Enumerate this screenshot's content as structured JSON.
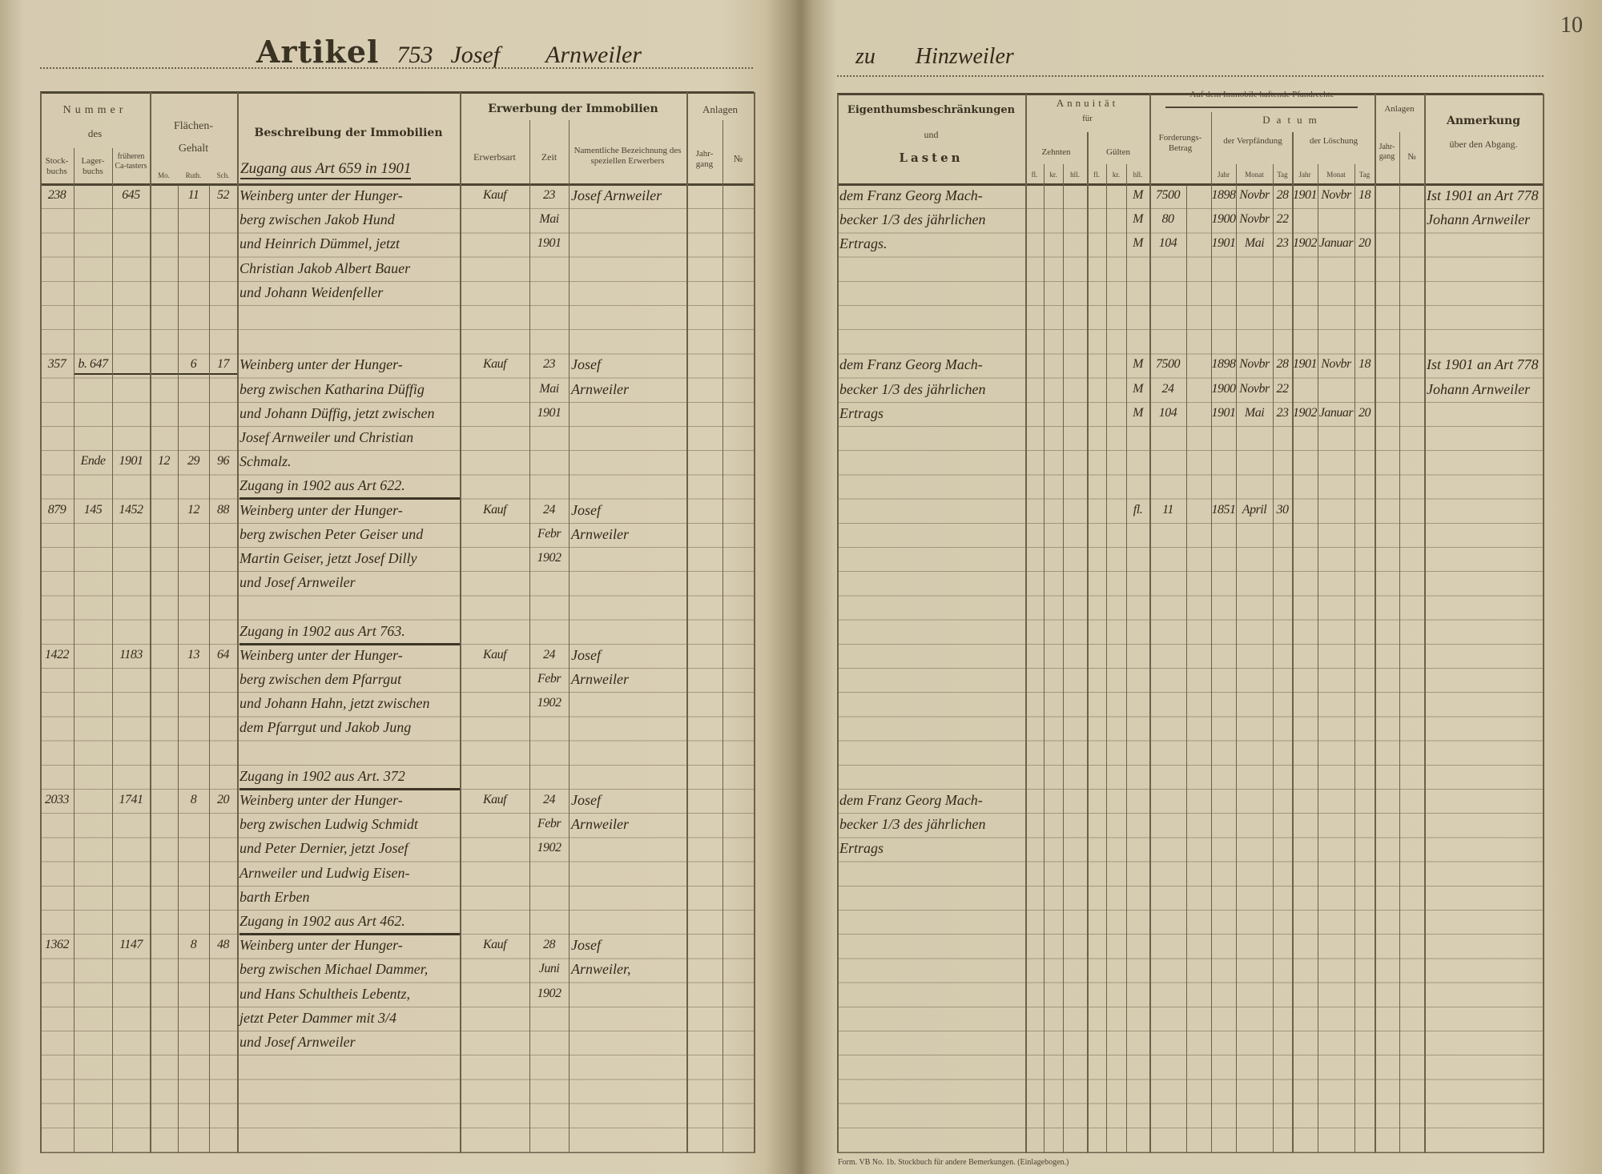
{
  "left_page": {
    "title_printed": "Artikel",
    "title_number": "753",
    "title_name": "Josef Arnweiler",
    "header": {
      "nummer": "Nummer",
      "des": "des",
      "stock": "Stock-buchs",
      "lager": "Lager-buchs",
      "frueh": "früheren Ca-tasters",
      "flaechen": "Flächen-",
      "gehalt": "Gehalt",
      "ma": "Mo.",
      "ruth": "Ruth.",
      "sch": "Sch.",
      "beschreibung": "Beschreibung der Immobilien",
      "erwerbung": "Erwerbung der Immobilien",
      "erwerbsart": "Erwerbsart",
      "zeit": "Zeit",
      "namentliche": "Namentliche Bezeichnung des speziellen Erwerbers",
      "anlagen": "Anlagen",
      "jahrgang": "Jahr-gang",
      "nr": "№",
      "first_zugang": "Zugang aus Art 659 in 1901"
    },
    "rows": [
      {
        "stock": "238",
        "frueh": "645",
        "ruth": "11",
        "sch": "52",
        "desc": "Weinberg unter der Hunger-",
        "art": "Kauf",
        "zeit": "23",
        "name": "Josef Arnweiler"
      },
      {
        "desc": "berg zwischen Jakob Hund",
        "zeit": "Mai"
      },
      {
        "desc": "und Heinrich Dümmel, jetzt",
        "zeit": "1901"
      },
      {
        "desc": "Christian Jakob Albert Bauer"
      },
      {
        "desc": "und Johann Weidenfeller"
      },
      {},
      {},
      {
        "stock": "357",
        "lager": "b. 647",
        "ruth": "6",
        "sch": "17",
        "desc": "Weinberg unter der Hunger-",
        "art": "Kauf",
        "zeit": "23",
        "name": "Josef"
      },
      {
        "desc": "berg zwischen Katharina Düffig",
        "zeit": "Mai",
        "name": "Arnweiler"
      },
      {
        "desc": "und Johann Düffig, jetzt zwischen",
        "zeit": "1901"
      },
      {
        "desc": "Josef Arnweiler und Christian"
      },
      {
        "lager": "Ende",
        "frueh": "1901",
        "ma": "12",
        "ruth": "29",
        "sch": "96",
        "desc": "Schmalz."
      },
      {
        "desc": "Zugang in 1902 aus Art 622.",
        "type": "zugang"
      },
      {
        "stock": "879",
        "lager": "145",
        "frueh": "1452",
        "ruth": "12",
        "sch": "88",
        "desc": "Weinberg unter der Hunger-",
        "art": "Kauf",
        "zeit": "24",
        "name": "Josef"
      },
      {
        "desc": "berg zwischen Peter Geiser und",
        "zeit": "Febr",
        "name": "Arnweiler"
      },
      {
        "desc": "Martin Geiser, jetzt Josef Dilly",
        "zeit": "1902"
      },
      {
        "desc": "und Josef Arnweiler"
      },
      {},
      {
        "desc": "Zugang in 1902 aus Art 763.",
        "type": "zugang"
      },
      {
        "stock": "1422",
        "frueh": "1183",
        "ruth": "13",
        "sch": "64",
        "desc": "Weinberg unter der Hunger-",
        "art": "Kauf",
        "zeit": "24",
        "name": "Josef"
      },
      {
        "desc": "berg zwischen dem Pfarrgut",
        "zeit": "Febr",
        "name": "Arnweiler"
      },
      {
        "desc": "und Johann Hahn, jetzt zwischen",
        "zeit": "1902"
      },
      {
        "desc": "dem Pfarrgut und Jakob Jung"
      },
      {},
      {
        "desc": "Zugang in 1902 aus Art. 372",
        "type": "zugang"
      },
      {
        "stock": "2033",
        "frueh": "1741",
        "ruth": "8",
        "sch": "20",
        "desc": "Weinberg unter der Hunger-",
        "art": "Kauf",
        "zeit": "24",
        "name": "Josef"
      },
      {
        "desc": "berg zwischen Ludwig Schmidt",
        "zeit": "Febr",
        "name": "Arnweiler"
      },
      {
        "desc": "und Peter Dernier, jetzt Josef",
        "zeit": "1902"
      },
      {
        "desc": "Arnweiler und Ludwig Eisen-"
      },
      {
        "desc": "barth Erben"
      },
      {
        "desc": "Zugang in 1902 aus Art 462.",
        "type": "zugang"
      },
      {
        "stock": "1362",
        "frueh": "1147",
        "ruth": "8",
        "sch": "48",
        "desc": "Weinberg unter der Hunger-",
        "art": "Kauf",
        "zeit": "28",
        "name": "Josef"
      },
      {
        "desc": "berg zwischen Michael Dammer,",
        "zeit": "Juni",
        "name": "Arnweiler,"
      },
      {
        "desc": "und Hans Schultheis Lebentz,",
        "zeit": "1902"
      },
      {
        "desc": "jetzt Peter Dammer mit 3/4"
      },
      {
        "desc": "und Josef Arnweiler"
      },
      {},
      {},
      {},
      {}
    ]
  },
  "right_page": {
    "title_prefix": "zu",
    "title_place": "Hinzweiler",
    "page_number": "10",
    "header": {
      "eigenthum": "Eigenthumsbeschränkungen",
      "und": "und",
      "lasten": "Lasten",
      "annuitaet": "Annuität",
      "fuer": "für",
      "zehnten": "Zehnten",
      "guelten": "Gülten",
      "fl": "fl.",
      "kr": "kr.",
      "hl": "hll.",
      "pfandrechte": "Auf dem Immobile haftende Pfandrechte",
      "forderung": "Forderungs-Betrag",
      "datum": "Datum",
      "verpfaendung": "der Verpfändung",
      "loeschung": "der Löschung",
      "jahr": "Jahr",
      "monat": "Monat",
      "tag": "Tag",
      "anlagen": "Anlagen",
      "jahrgang": "Jahr-gang",
      "nr": "№",
      "anmerkung": "Anmerkung",
      "abgang": "über den Abgang."
    },
    "rows": [
      {
        "eig": "dem Franz Georg Mach-",
        "cur": "M",
        "betrag": "7500",
        "vj": "1898",
        "vm": "Novbr",
        "vt": "28",
        "lj": "1901",
        "lm": "Novbr",
        "lt": "18",
        "anm": "Ist 1901 an Art 778"
      },
      {
        "eig": "becker 1/3 des jährlichen",
        "cur": "M",
        "betrag": "80",
        "vj": "1900",
        "vm": "Novbr",
        "vt": "22",
        "anm": "Johann Arnweiler"
      },
      {
        "eig": "Ertrags.",
        "cur": "M",
        "betrag": "104",
        "vj": "1901",
        "vm": "Mai",
        "vt": "23",
        "lj": "1902",
        "lm": "Januar",
        "lt": "20"
      },
      {},
      {},
      {},
      {},
      {
        "eig": "dem Franz Georg Mach-",
        "cur": "M",
        "betrag": "7500",
        "vj": "1898",
        "vm": "Novbr",
        "vt": "28",
        "lj": "1901",
        "lm": "Novbr",
        "lt": "18",
        "anm": "Ist 1901 an Art 778"
      },
      {
        "eig": "becker 1/3 des jährlichen",
        "cur": "M",
        "betrag": "24",
        "vj": "1900",
        "vm": "Novbr",
        "vt": "22",
        "anm": "Johann Arnweiler"
      },
      {
        "eig": "Ertrags",
        "cur": "M",
        "betrag": "104",
        "vj": "1901",
        "vm": "Mai",
        "vt": "23",
        "lj": "1902",
        "lm": "Januar",
        "lt": "20"
      },
      {},
      {},
      {},
      {
        "cur": "fl.",
        "betrag": "11",
        "vj": "1851",
        "vm": "April",
        "vt": "30"
      },
      {},
      {},
      {},
      {},
      {},
      {},
      {},
      {},
      {},
      {},
      {},
      {
        "eig": "dem Franz Georg Mach-"
      },
      {
        "eig": "becker 1/3 des jährlichen"
      },
      {
        "eig": "Ertrags"
      },
      {},
      {},
      {},
      {},
      {},
      {},
      {},
      {},
      {},
      {},
      {},
      {}
    ],
    "footer": "Form. VB No. 1b. Stockbuch für andere Bemerkungen. (Einlagebogen.)"
  }
}
